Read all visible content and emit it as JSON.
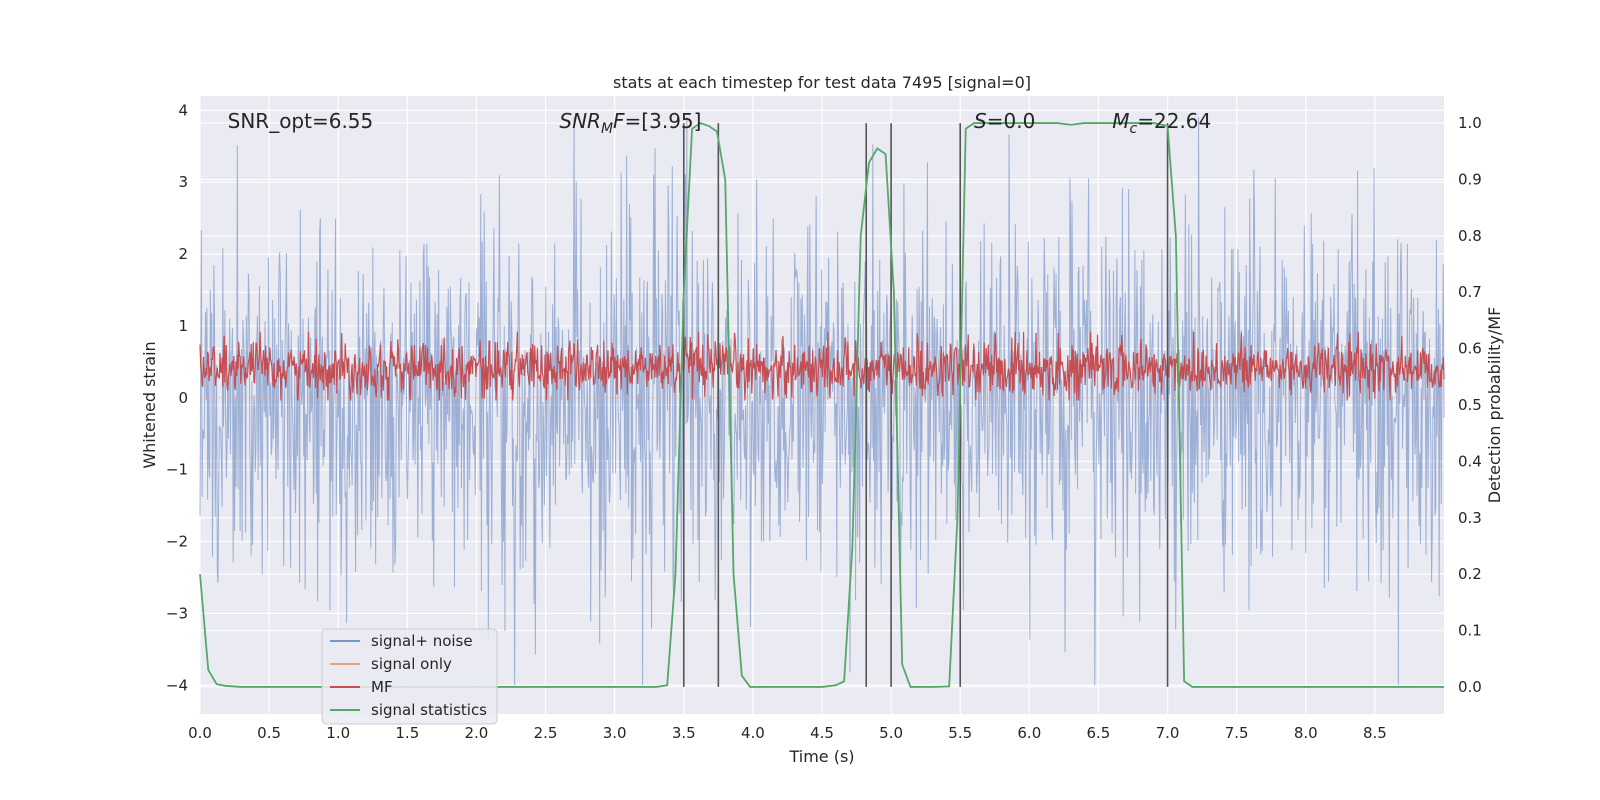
{
  "chart_data": {
    "type": "line",
    "title": "stats at each timestep for test data 7495 [signal=0]",
    "xlabel": "Time (s)",
    "ylabel_left": "Whitened strain",
    "ylabel_right": "Detection probability/MF",
    "xlim": [
      0,
      9.0
    ],
    "ylim_left": [
      -4.4,
      4.2
    ],
    "ylim_right": [
      -0.048,
      1.048
    ],
    "grid": true,
    "legend_placement": "lower-left",
    "x_ticks": [
      "0.0",
      "0.5",
      "1.0",
      "1.5",
      "2.0",
      "2.5",
      "3.0",
      "3.5",
      "4.0",
      "4.5",
      "5.0",
      "5.5",
      "6.0",
      "6.5",
      "7.0",
      "7.5",
      "8.0",
      "8.5"
    ],
    "y_ticks_left": [
      "−4",
      "−3",
      "−2",
      "−1",
      "0",
      "1",
      "2",
      "3",
      "4"
    ],
    "y_ticks_right": [
      "0.0",
      "0.1",
      "0.2",
      "0.3",
      "0.4",
      "0.5",
      "0.6",
      "0.7",
      "0.8",
      "0.9",
      "1.0"
    ],
    "annotations": [
      {
        "text": "SNR_opt=6.55",
        "x": 0.2,
        "y": 3.85
      },
      {
        "base": "SNR",
        "sub": "M",
        "tail": "F=[3.95]",
        "x": 2.6,
        "y": 3.85
      },
      {
        "base": "S",
        "sub": "",
        "tail": "=0.0",
        "x": 5.6,
        "y": 3.85
      },
      {
        "base": "M",
        "sub": "c",
        "tail": "=22.64",
        "x": 6.6,
        "y": 3.85
      }
    ],
    "vlines": [
      3.5,
      3.75,
      4.82,
      5.0,
      5.5,
      7.0
    ],
    "vline_range_right": [
      0.0,
      1.0
    ],
    "series": [
      {
        "name": "signal+ noise",
        "color": "#7a96c8",
        "axis": "left",
        "description_stats": {
          "sigma": 0.95,
          "points": 1800
        }
      },
      {
        "name": "signal only",
        "color": "#e8a083",
        "axis": "left",
        "values_constant": 0
      },
      {
        "name": "MF",
        "color": "#c44e52",
        "axis": "right",
        "description_stats": {
          "mean": 0.565,
          "sigma": 0.025,
          "points": 1800
        }
      },
      {
        "name": "signal statistics",
        "color": "#55a868",
        "axis": "right",
        "x": [
          0.0,
          0.06,
          0.12,
          0.18,
          0.3,
          0.6,
          1.0,
          1.5,
          2.0,
          2.5,
          3.0,
          3.3,
          3.38,
          3.44,
          3.5,
          3.56,
          3.62,
          3.68,
          3.74,
          3.8,
          3.86,
          3.92,
          3.98,
          4.1,
          4.3,
          4.5,
          4.6,
          4.66,
          4.72,
          4.78,
          4.84,
          4.9,
          4.96,
          5.02,
          5.08,
          5.14,
          5.2,
          5.3,
          5.42,
          5.48,
          5.54,
          5.6,
          5.8,
          6.0,
          6.2,
          6.3,
          6.4,
          6.6,
          6.8,
          6.9,
          7.0,
          7.06,
          7.12,
          7.18,
          7.3,
          7.6,
          8.0,
          8.5,
          9.0
        ],
        "values": [
          0.2,
          0.03,
          0.005,
          0.002,
          0.0,
          0.0,
          0.0,
          0.0,
          0.0,
          0.0,
          0.0,
          0.0,
          0.003,
          0.2,
          0.7,
          0.99,
          1.0,
          0.995,
          0.985,
          0.9,
          0.2,
          0.02,
          0.0,
          0.0,
          0.0,
          0.0,
          0.003,
          0.01,
          0.25,
          0.8,
          0.93,
          0.955,
          0.945,
          0.7,
          0.04,
          0.0,
          0.0,
          0.0,
          0.001,
          0.3,
          0.99,
          1.0,
          1.0,
          1.0,
          1.0,
          0.997,
          1.0,
          1.0,
          1.0,
          1.0,
          0.995,
          0.8,
          0.01,
          0.0,
          0.0,
          0.0,
          0.0,
          0.0,
          0.0
        ]
      }
    ]
  }
}
